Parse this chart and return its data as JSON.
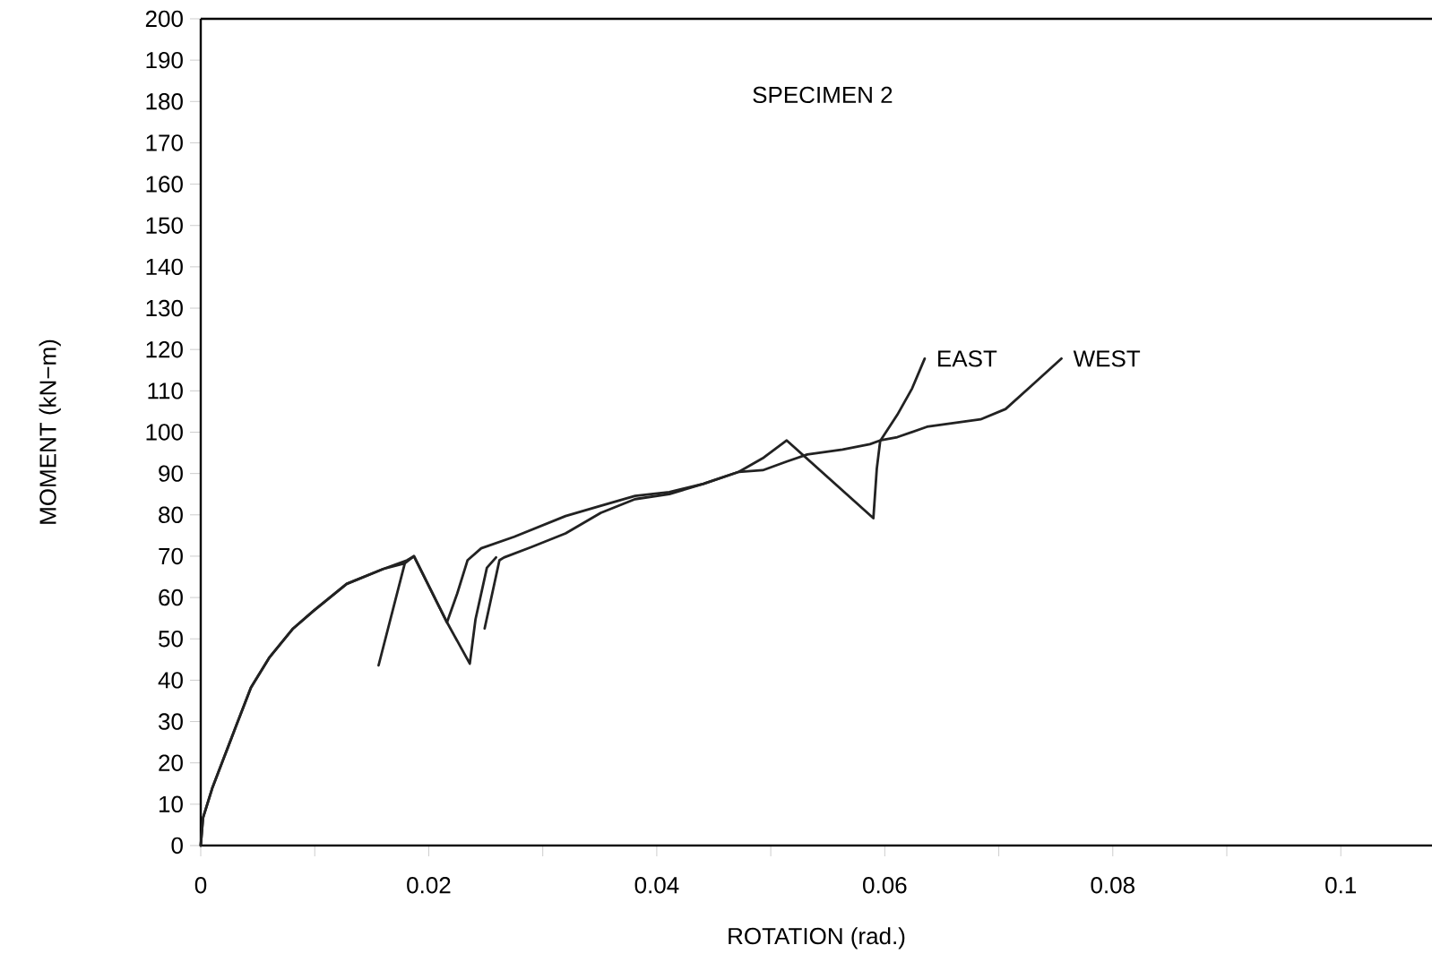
{
  "chart_data": {
    "type": "line",
    "title": "SPECIMEN 2",
    "xlabel": "ROTATION (rad.)",
    "ylabel": "MOMENT (kN−m)",
    "xlim": [
      0,
      0.108
    ],
    "ylim": [
      0,
      200
    ],
    "xticks": [
      0,
      {
        "value": 0.01,
        "label": null
      },
      0.02,
      {
        "value": 0.03,
        "label": null
      },
      0.04,
      {
        "value": 0.05,
        "label": null
      },
      0.06,
      {
        "value": 0.07,
        "label": null
      },
      0.08,
      {
        "value": 0.09,
        "label": null
      },
      0.1
    ],
    "yticks": [
      0,
      10,
      20,
      30,
      40,
      50,
      60,
      70,
      80,
      90,
      100,
      110,
      120,
      130,
      140,
      150,
      160,
      170,
      180,
      190,
      200
    ],
    "series": [
      {
        "name": "EAST",
        "color": "#222222",
        "x": [
          0,
          0.0002,
          0.001,
          0.002,
          0.0031,
          0.0044,
          0.006,
          0.0081,
          0.0099,
          0.0128,
          0.016,
          0.0179,
          null,
          0.0156,
          0.0179,
          0.0187,
          0.0216,
          0.0236,
          0.0241,
          0.0251,
          0.0259,
          null,
          0.0249,
          0.0262,
          0.0266,
          0.029,
          0.032,
          0.0351,
          0.0381,
          0.0411,
          0.0441,
          0.0472,
          0.0493,
          0.0514,
          0.059,
          0.0593,
          0.0596,
          0.0611,
          0.0624,
          0.0635
        ],
        "values": [
          0,
          6.7,
          13.8,
          21,
          28.9,
          38.2,
          45.4,
          52.5,
          56.8,
          63.3,
          66.9,
          68.3,
          null,
          43.6,
          68.3,
          70,
          54,
          44,
          54.7,
          67.2,
          69.7,
          null,
          52.5,
          69,
          69.7,
          72.2,
          75.5,
          80.5,
          83.8,
          85,
          87.5,
          90.4,
          93.7,
          98,
          79.2,
          91.2,
          97.9,
          104.2,
          110.6,
          117.8
        ]
      },
      {
        "name": "WEST",
        "color": "#222222",
        "x": [
          0,
          0.0002,
          0.001,
          0.002,
          0.0031,
          0.0044,
          0.006,
          0.0081,
          0.0099,
          0.0128,
          0.016,
          0.0181,
          0.0187,
          0.0216,
          0.0225,
          0.0234,
          0.0246,
          0.0275,
          0.032,
          0.0351,
          0.0381,
          0.0411,
          0.0441,
          0.0472,
          0.0493,
          0.0514,
          0.0532,
          0.0563,
          0.0587,
          0.0597,
          0.0611,
          0.0637,
          0.0684,
          0.0706,
          0.0729,
          0.0755
        ],
        "values": [
          0,
          6.7,
          13.8,
          21,
          28.9,
          38.2,
          45.4,
          52.5,
          56.8,
          63.3,
          66.9,
          69,
          70,
          54,
          61,
          69,
          71.9,
          74.7,
          79.7,
          82.2,
          84.6,
          85.5,
          87.5,
          90.4,
          90.8,
          92.9,
          94.6,
          95.8,
          97.1,
          98.1,
          98.8,
          101.3,
          103.1,
          105.6,
          111.3,
          117.8
        ]
      }
    ]
  }
}
